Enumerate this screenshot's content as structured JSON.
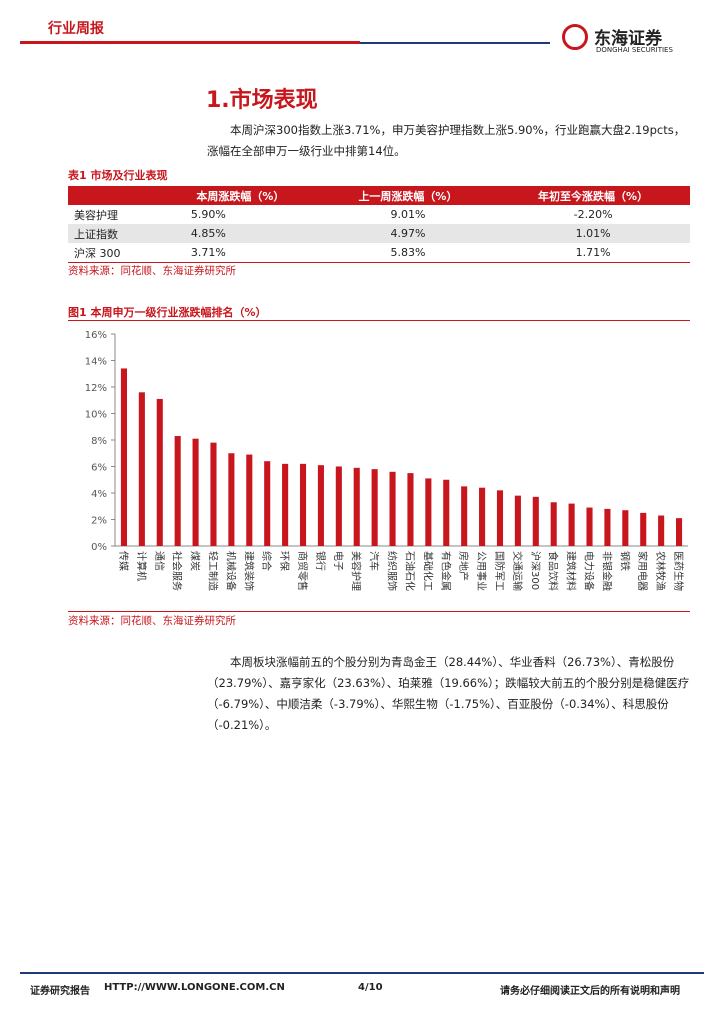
{
  "header": {
    "title": "行业周报",
    "logo_name": "东海证券",
    "logo_sub": "DONGHAI SECURITIES"
  },
  "section": {
    "title": "1.市场表现",
    "paragraph": "本周沪深300指数上涨3.71%，申万美容护理指数上涨5.90%，行业跑赢大盘2.19pcts，涨幅在全部申万一级行业中排第14位。"
  },
  "table": {
    "caption": "表1 市场及行业表现",
    "header": [
      "",
      "本周涨跌幅（%）",
      "上一周涨跌幅（%）",
      "年初至今涨跌幅（%）"
    ],
    "rows": [
      [
        "美容护理",
        "5.90%",
        "9.01%",
        "-2.20%"
      ],
      [
        "上证指数",
        "4.85%",
        "4.97%",
        "1.01%"
      ],
      [
        "沪深 300",
        "3.71%",
        "5.83%",
        "1.71%"
      ]
    ],
    "source": "资料来源：同花顺、东海证券研究所"
  },
  "chart_data": {
    "type": "bar",
    "title": "图1 本周申万一级行业涨跌幅排名（%）",
    "color": "#c8161d",
    "categories": [
      "传媒",
      "计算机",
      "通信",
      "社会服务",
      "煤炭",
      "轻工制造",
      "机械设备",
      "建筑装饰",
      "综合",
      "环保",
      "商贸零售",
      "银行",
      "电子",
      "美容护理",
      "汽车",
      "纺织服饰",
      "石油石化",
      "基础化工",
      "有色金属",
      "房地产",
      "公用事业",
      "国防军工",
      "交通运输",
      "沪深300",
      "食品饮料",
      "建筑材料",
      "电力设备",
      "非银金融",
      "钢铁",
      "家用电器",
      "农林牧渔",
      "医药生物"
    ],
    "values": [
      13.4,
      11.6,
      11.1,
      8.3,
      8.1,
      7.8,
      7.0,
      6.9,
      6.4,
      6.2,
      6.2,
      6.1,
      6.0,
      5.9,
      5.8,
      5.6,
      5.5,
      5.1,
      5.0,
      4.5,
      4.4,
      4.2,
      3.8,
      3.71,
      3.3,
      3.2,
      2.9,
      2.8,
      2.7,
      2.5,
      2.3,
      2.1
    ],
    "ylim": [
      0,
      16
    ],
    "yticks": [
      {
        "value": 0,
        "label": "0%"
      },
      {
        "value": 2,
        "label": "2%"
      },
      {
        "value": 4,
        "label": "4%"
      },
      {
        "value": 6,
        "label": "6%"
      },
      {
        "value": 8,
        "label": "8%"
      },
      {
        "value": 10,
        "label": "10%"
      },
      {
        "value": 12,
        "label": "12%"
      },
      {
        "value": 14,
        "label": "14%"
      },
      {
        "value": 16,
        "label": "16%"
      }
    ],
    "source": "资料来源：同花顺、东海证券研究所"
  },
  "body": {
    "paragraph": "本周板块涨幅前五的个股分别为青岛金王（28.44%）、华业香料（26.73%）、青松股份（23.79%）、嘉亨家化（23.63%）、珀莱雅（19.66%）；跌幅较大前五的个股分别是稳健医疗（-6.79%）、中顺洁柔（-3.79%）、华熙生物（-1.75%）、百亚股份（-0.34%）、科思股份（-0.21%）。"
  },
  "footer": {
    "left": "证券研究报告",
    "url": "HTTP://WWW.LONGONE.COM.CN",
    "page": "4/10",
    "right": "请务必仔细阅读正文后的所有说明和声明"
  }
}
